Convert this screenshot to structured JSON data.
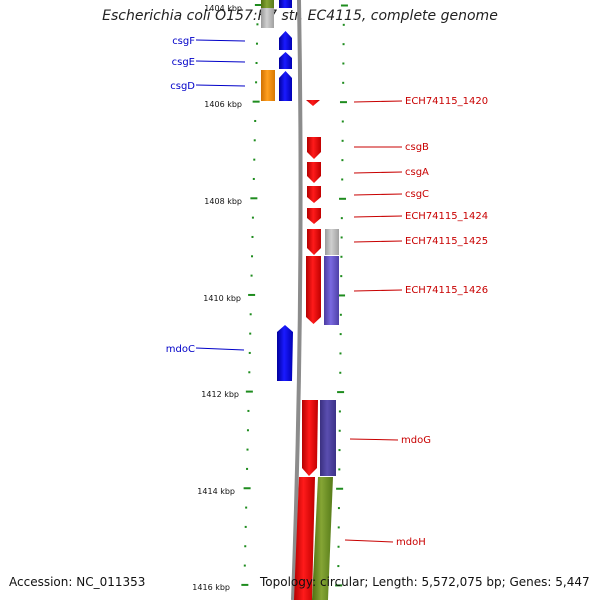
{
  "title": "Escherichia coli O157:H7 str. EC4115, complete genome",
  "footer": {
    "accession": "Accession: NC_011353",
    "summary": "Topology: circular; Length: 5,572,075 bp; Genes: 5,447"
  },
  "scale_labels": [
    "1404 kbp",
    "1406 kbp",
    "1408 kbp",
    "1410 kbp",
    "1412 kbp",
    "1414 kbp",
    "1416 kbp"
  ],
  "colors": {
    "forward_cds": "#0000e6",
    "reverse_cds": "#e60000",
    "orange_feature": "#f5900a",
    "olive_feature": "#6f8f23",
    "purple_feature": "#6a5acd",
    "gray_feature": "#b4b4b4",
    "backbone": "#8c8c8c",
    "tick": "#1e8c1e",
    "label_blue": "#0000c8",
    "label_red": "#c80000"
  },
  "genes_left": [
    {
      "name": "csgF",
      "strand": "forward"
    },
    {
      "name": "csgE",
      "strand": "forward"
    },
    {
      "name": "csgD",
      "strand": "forward"
    },
    {
      "name": "mdoC",
      "strand": "forward"
    }
  ],
  "genes_right": [
    {
      "name": "ECH74115_1420",
      "strand": "reverse"
    },
    {
      "name": "csgB",
      "strand": "reverse"
    },
    {
      "name": "csgA",
      "strand": "reverse"
    },
    {
      "name": "csgC",
      "strand": "reverse"
    },
    {
      "name": "ECH74115_1424",
      "strand": "reverse"
    },
    {
      "name": "ECH74115_1425",
      "strand": "reverse"
    },
    {
      "name": "ECH74115_1426",
      "strand": "reverse"
    },
    {
      "name": "mdoG",
      "strand": "reverse"
    },
    {
      "name": "mdoH",
      "strand": "reverse"
    }
  ]
}
